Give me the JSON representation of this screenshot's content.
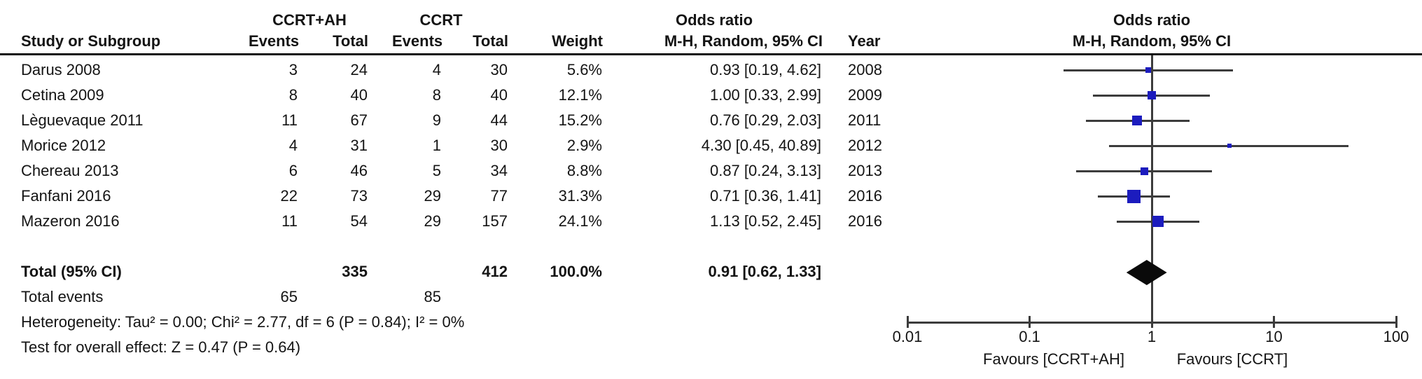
{
  "header": {
    "group1": "CCRT+AH",
    "group2": "CCRT",
    "col_study": "Study or Subgroup",
    "col_events": "Events",
    "col_total": "Total",
    "col_weight": "Weight",
    "or_title": "Odds ratio",
    "or_subtitle": "M-H, Random, 95% CI",
    "col_year": "Year",
    "plot_title": "Odds ratio",
    "plot_subtitle": "M-H, Random, 95% CI"
  },
  "table": {
    "studies": [
      {
        "name": "Darus 2008",
        "events1": "3",
        "total1": "24",
        "events2": "4",
        "total2": "30",
        "weight": "5.6%",
        "or_ci": "0.93 [0.19, 4.62]",
        "year": "2008"
      },
      {
        "name": "Cetina 2009",
        "events1": "8",
        "total1": "40",
        "events2": "8",
        "total2": "40",
        "weight": "12.1%",
        "or_ci": "1.00 [0.33, 2.99]",
        "year": "2009"
      },
      {
        "name": "Lèguevaque 2011",
        "events1": "11",
        "total1": "67",
        "events2": "9",
        "total2": "44",
        "weight": "15.2%",
        "or_ci": "0.76 [0.29, 2.03]",
        "year": "2011"
      },
      {
        "name": "Morice 2012",
        "events1": "4",
        "total1": "31",
        "events2": "1",
        "total2": "30",
        "weight": "2.9%",
        "or_ci": "4.30 [0.45, 40.89]",
        "year": "2012"
      },
      {
        "name": "Chereau 2013",
        "events1": "6",
        "total1": "46",
        "events2": "5",
        "total2": "34",
        "weight": "8.8%",
        "or_ci": "0.87 [0.24, 3.13]",
        "year": "2013"
      },
      {
        "name": "Fanfani 2016",
        "events1": "22",
        "total1": "73",
        "events2": "29",
        "total2": "77",
        "weight": "31.3%",
        "or_ci": "0.71 [0.36, 1.41]",
        "year": "2016"
      },
      {
        "name": "Mazeron 2016",
        "events1": "11",
        "total1": "54",
        "events2": "29",
        "total2": "157",
        "weight": "24.1%",
        "or_ci": "1.13 [0.52, 2.45]",
        "year": "2016"
      }
    ],
    "total_row": {
      "label": "Total (95% CI)",
      "total1": "335",
      "total2": "412",
      "weight": "100.0%",
      "or_ci": "0.91 [0.62, 1.33]"
    },
    "total_events": {
      "label": "Total events",
      "events1": "65",
      "events2": "85"
    },
    "heterogeneity": "Heterogeneity: Tau² = 0.00; Chi² = 2.77, df = 6 (P = 0.84); I² = 0%",
    "overall_effect": "Test for overall effect: Z = 0.47 (P = 0.64)"
  },
  "plot": {
    "tick_labels": [
      "0.01",
      "0.1",
      "1",
      "10",
      "100"
    ],
    "favours_left": "Favours [CCRT+AH]",
    "favours_right": "Favours [CCRT]",
    "marker_color": "#1c1cbe",
    "line_color": "#3c3c3c",
    "diamond_color": "#0a0a0a"
  },
  "chart_data": {
    "type": "scatter",
    "subtype": "forest-plot",
    "title": "Odds ratio",
    "subtitle": "M-H, Random, 95% CI",
    "x_scale": "log",
    "x_ticks": [
      0.01,
      0.1,
      1,
      10,
      100
    ],
    "xlim": [
      0.01,
      100
    ],
    "xlabel_left": "Favours [CCRT+AH]",
    "xlabel_right": "Favours [CCRT]",
    "series": [
      {
        "name": "Darus 2008",
        "or": 0.93,
        "ci_low": 0.19,
        "ci_high": 4.62,
        "weight_pct": 5.6,
        "events_ccrt_ah": 3,
        "total_ccrt_ah": 24,
        "events_ccrt": 4,
        "total_ccrt": 30,
        "year": 2008
      },
      {
        "name": "Cetina 2009",
        "or": 1.0,
        "ci_low": 0.33,
        "ci_high": 2.99,
        "weight_pct": 12.1,
        "events_ccrt_ah": 8,
        "total_ccrt_ah": 40,
        "events_ccrt": 8,
        "total_ccrt": 40,
        "year": 2009
      },
      {
        "name": "Lèguevaque 2011",
        "or": 0.76,
        "ci_low": 0.29,
        "ci_high": 2.03,
        "weight_pct": 15.2,
        "events_ccrt_ah": 11,
        "total_ccrt_ah": 67,
        "events_ccrt": 9,
        "total_ccrt": 44,
        "year": 2011
      },
      {
        "name": "Morice 2012",
        "or": 4.3,
        "ci_low": 0.45,
        "ci_high": 40.89,
        "weight_pct": 2.9,
        "events_ccrt_ah": 4,
        "total_ccrt_ah": 31,
        "events_ccrt": 1,
        "total_ccrt": 30,
        "year": 2012
      },
      {
        "name": "Chereau 2013",
        "or": 0.87,
        "ci_low": 0.24,
        "ci_high": 3.13,
        "weight_pct": 8.8,
        "events_ccrt_ah": 6,
        "total_ccrt_ah": 46,
        "events_ccrt": 5,
        "total_ccrt": 34,
        "year": 2013
      },
      {
        "name": "Fanfani 2016",
        "or": 0.71,
        "ci_low": 0.36,
        "ci_high": 1.41,
        "weight_pct": 31.3,
        "events_ccrt_ah": 22,
        "total_ccrt_ah": 73,
        "events_ccrt": 29,
        "total_ccrt": 77,
        "year": 2016
      },
      {
        "name": "Mazeron 2016",
        "or": 1.13,
        "ci_low": 0.52,
        "ci_high": 2.45,
        "weight_pct": 24.1,
        "events_ccrt_ah": 11,
        "total_ccrt_ah": 54,
        "events_ccrt": 29,
        "total_ccrt": 157,
        "year": 2016
      }
    ],
    "summary": {
      "label": "Total (95% CI)",
      "or": 0.91,
      "ci_low": 0.62,
      "ci_high": 1.33,
      "weight_pct": 100.0,
      "total_ccrt_ah": 335,
      "total_ccrt": 412,
      "total_events_ccrt_ah": 65,
      "total_events_ccrt": 85
    },
    "heterogeneity": "Tau² = 0.00; Chi² = 2.77, df = 6 (P = 0.84); I² = 0%",
    "overall_effect_test": "Z = 0.47 (P = 0.64)"
  }
}
